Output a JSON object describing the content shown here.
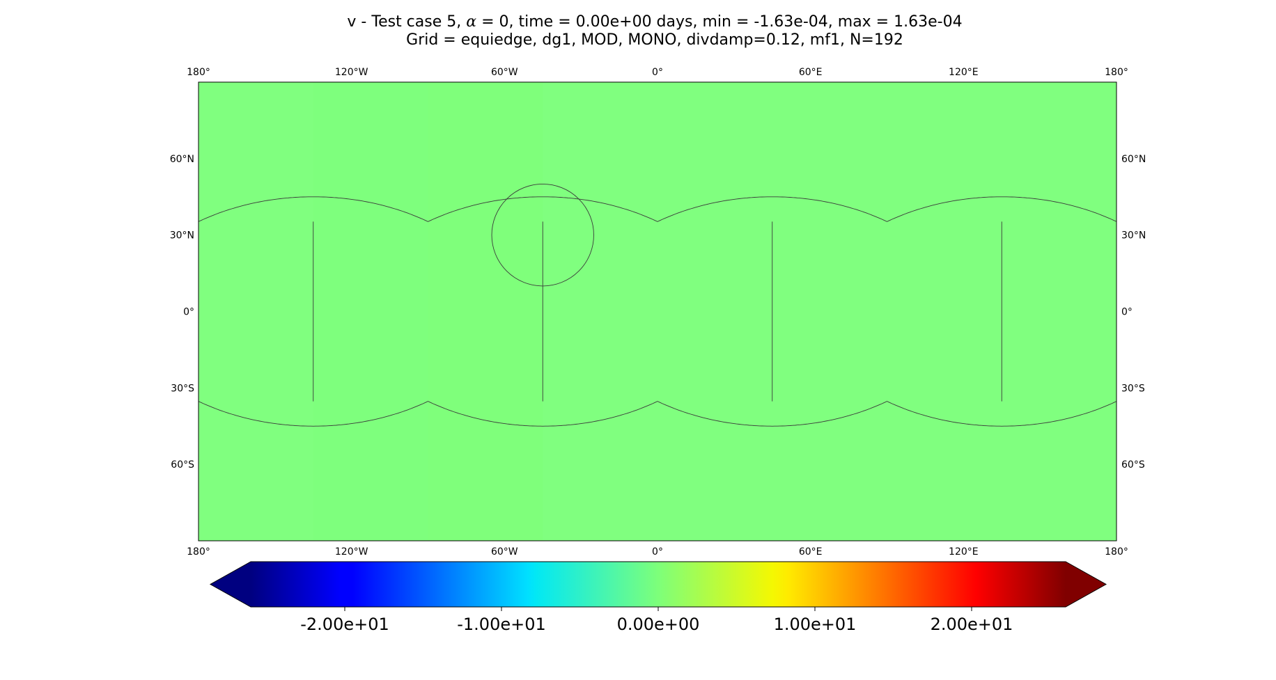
{
  "title": {
    "line1_prefix": "v - Test case 5, ",
    "line1_alpha": "α",
    "line1_suffix": " = 0, time = 0.00e+00 days, min = -1.63e-04, max = 1.63e-04",
    "line2": "Grid = equiedge, dg1, MOD, MONO, divdamp=0.12, mf1, N=192"
  },
  "map": {
    "projection": "plate-carree",
    "lon_range": [
      -180,
      180
    ],
    "lat_range": [
      -90,
      90
    ],
    "fill_color": "#80ff7f",
    "lon_ticks": [
      {
        "value": -180,
        "label": "180°"
      },
      {
        "value": -120,
        "label": "120°W"
      },
      {
        "value": -60,
        "label": "60°W"
      },
      {
        "value": 0,
        "label": "0°"
      },
      {
        "value": 60,
        "label": "60°E"
      },
      {
        "value": 120,
        "label": "120°E"
      },
      {
        "value": 180,
        "label": "180°"
      }
    ],
    "lat_ticks": [
      {
        "value": 60,
        "label": "60°N"
      },
      {
        "value": 30,
        "label": "30°N"
      },
      {
        "value": 0,
        "label": "0°"
      },
      {
        "value": -30,
        "label": "30°S"
      },
      {
        "value": -60,
        "label": "60°S"
      }
    ],
    "cube_vertical_edges_lon": [
      -135,
      -45,
      45,
      135
    ],
    "cube_corner_lat": 35.26,
    "cube_arc_apex_lat": 45,
    "arc_centers_lon": [
      -180,
      -90,
      0,
      90,
      180
    ],
    "marker_circle": {
      "lon": -45,
      "lat": 30,
      "radius_deg": 20
    }
  },
  "chart_data": {
    "type": "heatmap",
    "title": "v - Test case 5, α = 0, time = 0.00e+00 days, min = -1.63e-04, max = 1.63e-04",
    "subtitle": "Grid = equiedge, dg1, MOD, MONO, divdamp=0.12, mf1, N=192",
    "field": "v",
    "min": -0.000163,
    "max": 0.000163,
    "x": {
      "range": [
        -180,
        180
      ],
      "ticks": [
        -180,
        -120,
        -60,
        0,
        60,
        120,
        180
      ]
    },
    "y": {
      "range": [
        -90,
        90
      ],
      "ticks": [
        60,
        30,
        0,
        -30,
        -60
      ]
    },
    "colorbar": {
      "colormap": "jet",
      "range": [
        -26,
        26
      ],
      "extend": "both",
      "orientation": "horizontal",
      "ticks": [
        {
          "value": -20,
          "label": "-2.00e+01"
        },
        {
          "value": -10,
          "label": "-1.00e+01"
        },
        {
          "value": 0,
          "label": "0.00e+00"
        },
        {
          "value": 10,
          "label": "1.00e+01"
        },
        {
          "value": 20,
          "label": "2.00e+01"
        }
      ]
    }
  }
}
